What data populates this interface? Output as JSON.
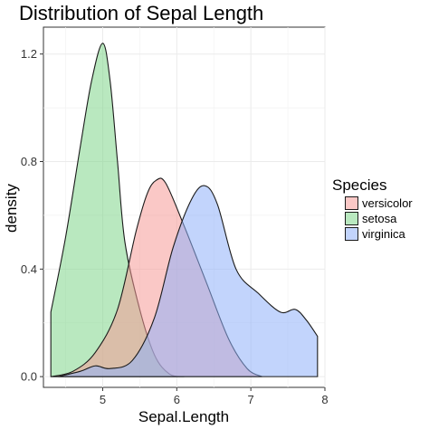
{
  "chart_data": {
    "type": "area",
    "title": "Distribution of Sepal Length",
    "xlabel": "Sepal.Length",
    "ylabel": "density",
    "xlim": [
      4.2,
      8.0
    ],
    "ylim": [
      -0.04,
      1.3
    ],
    "xticks": [
      5,
      6,
      7,
      8
    ],
    "yticks": [
      0.0,
      0.4,
      0.8,
      1.2
    ],
    "ytick_labels": [
      "0.0",
      "0.4",
      "0.8",
      "1.2"
    ],
    "grid": true,
    "legend": {
      "title": "Species",
      "position": "right",
      "entries": [
        "versicolor",
        "setosa",
        "virginica"
      ]
    },
    "series": [
      {
        "name": "setosa",
        "color": "#7fd68a",
        "x": [
          4.3,
          4.5,
          4.7,
          4.85,
          5.0,
          5.1,
          5.2,
          5.3,
          5.5,
          5.7,
          5.9,
          6.1
        ],
        "y": [
          0.24,
          0.52,
          0.86,
          1.1,
          1.24,
          1.1,
          0.8,
          0.5,
          0.25,
          0.08,
          0.01,
          0.0
        ]
      },
      {
        "name": "versicolor",
        "color": "#f59b98",
        "x": [
          4.3,
          4.6,
          4.9,
          5.2,
          5.45,
          5.6,
          5.72,
          5.85,
          6.1,
          6.4,
          6.7,
          6.95,
          7.15
        ],
        "y": [
          0.0,
          0.02,
          0.09,
          0.25,
          0.54,
          0.68,
          0.73,
          0.72,
          0.56,
          0.35,
          0.14,
          0.03,
          0.0
        ]
      },
      {
        "name": "virginica",
        "color": "#8fb0fa",
        "x": [
          4.4,
          4.7,
          4.9,
          5.1,
          5.4,
          5.7,
          5.95,
          6.2,
          6.38,
          6.55,
          6.8,
          7.1,
          7.4,
          7.6,
          7.75,
          7.9
        ],
        "y": [
          0.0,
          0.02,
          0.04,
          0.03,
          0.06,
          0.22,
          0.48,
          0.66,
          0.71,
          0.64,
          0.4,
          0.31,
          0.24,
          0.25,
          0.21,
          0.15
        ]
      }
    ]
  }
}
